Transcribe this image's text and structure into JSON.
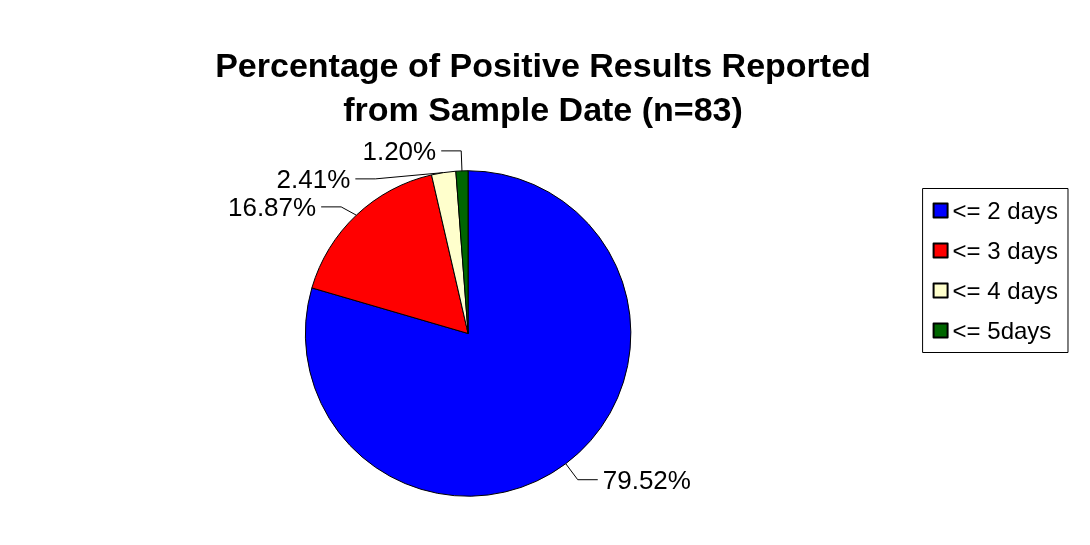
{
  "chart_data": {
    "type": "pie",
    "title": "Percentage of Positive Results Reported\nfrom Sample Date (n=83)",
    "categories": [
      "<= 2 days",
      "<= 3 days",
      "<= 4 days",
      "<= 5days"
    ],
    "values": [
      79.52,
      16.87,
      2.41,
      1.2
    ],
    "value_labels": [
      "79.52%",
      "16.87%",
      "2.41%",
      "1.20%"
    ],
    "colors": [
      "#0000ff",
      "#ff0000",
      "#ffffcc",
      "#006600"
    ],
    "legend": "right"
  }
}
